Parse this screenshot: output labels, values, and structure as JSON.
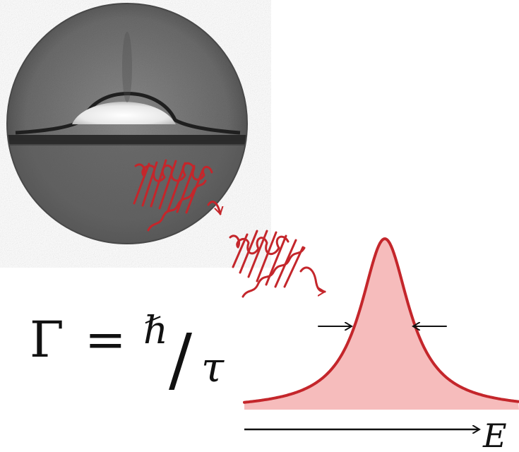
{
  "formula": {
    "lhs": "Γ",
    "equals": "=",
    "numerator": "ℏ",
    "slash": "/",
    "denominator": "τ"
  },
  "energy_axis": {
    "label": "E"
  },
  "colors": {
    "wave": "#c4262b",
    "peak_fill": "#f6bcbc",
    "peak_stroke": "#c4262b",
    "axis": "#111111",
    "micrograph_bg": "#6f6f6f"
  },
  "icons": {
    "micrograph": "circular-micrograph-icon",
    "wave_packet": "wave-packet-icon",
    "peak": "lorentzian-peak-icon",
    "width_arrows": "width-arrow-icon",
    "axis_arrow": "axis-arrow-icon"
  }
}
